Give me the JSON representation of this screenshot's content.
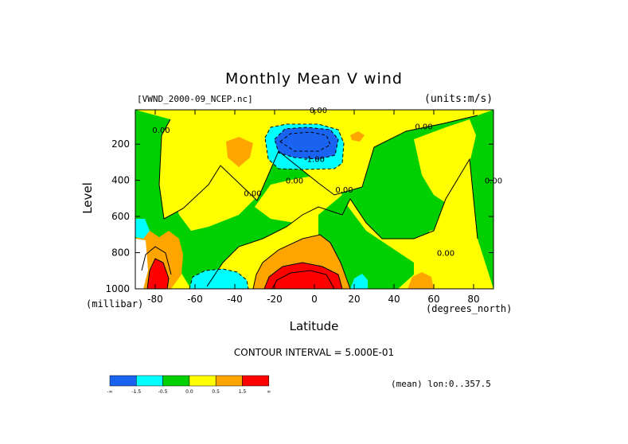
{
  "title": "Monthly Mean V wind",
  "dataset_label": "[VWND_2000-09_NCEP.nc]",
  "units_label": "(units:m/s)",
  "contour_interval_text": "CONTOUR INTERVAL = 5.000E-01",
  "mean_note": "(mean) lon:0..357.5",
  "colors": {
    "lt_neg1p5": "#1a63f0",
    "neg1p5_neg0p5": "#00ffff",
    "neg0p5_0": "#00d000",
    "0_0p5": "#ffff00",
    "0p5_1p5": "#ffa500",
    "gt_1p5": "#ff0000",
    "contour": "#000000"
  },
  "chart_data": {
    "type": "heatmap",
    "title": "Monthly Mean V wind",
    "xlabel": "Latitude",
    "xunit": "(degrees_north)",
    "ylabel": "Level",
    "yunit": "(millibar)",
    "xlim": [
      -90,
      90
    ],
    "ylim": [
      1000,
      10
    ],
    "x_ticks": [
      -80,
      -60,
      -40,
      -20,
      0,
      20,
      40,
      60,
      80
    ],
    "y_ticks": [
      200,
      400,
      600,
      800,
      1000
    ],
    "legend": {
      "type": "colorbar",
      "labels": [
        "-∞",
        "-1.5",
        "-0.5",
        "0.0",
        "0.5",
        "1.5",
        "∞"
      ],
      "placement": "bottom-left"
    },
    "contour_labels": [
      {
        "text": "0.00",
        "lat": -77,
        "level": 120
      },
      {
        "text": "0.00",
        "lat": 2,
        "level": 10
      },
      {
        "text": "0.00",
        "lat": 55,
        "level": 100
      },
      {
        "text": "-1.00",
        "lat": 0,
        "level": 280
      },
      {
        "text": "0.00",
        "lat": -31,
        "level": 470
      },
      {
        "text": "0.00",
        "lat": -10,
        "level": 400
      },
      {
        "text": "0.00",
        "lat": 15,
        "level": 450
      },
      {
        "text": "0.00",
        "lat": 66,
        "level": 800
      },
      {
        "text": "0.00",
        "lat": 90,
        "level": 400
      }
    ],
    "regions": [
      {
        "value_range": "0 to 0.5",
        "note": "background (positive, weak)"
      },
      {
        "value_range": "-0.5 to 0",
        "area": "southern tropics to mid-latitudes, upper levels"
      },
      {
        "value_range": "< -1.5",
        "area": "centered ~0°, ~200 mb"
      },
      {
        "value_range": "> 1.5",
        "area": "centered ~0°, ~1000 mb"
      },
      {
        "value_range": "> 1.5",
        "area": "~-85°, 900-1000 mb"
      }
    ]
  }
}
